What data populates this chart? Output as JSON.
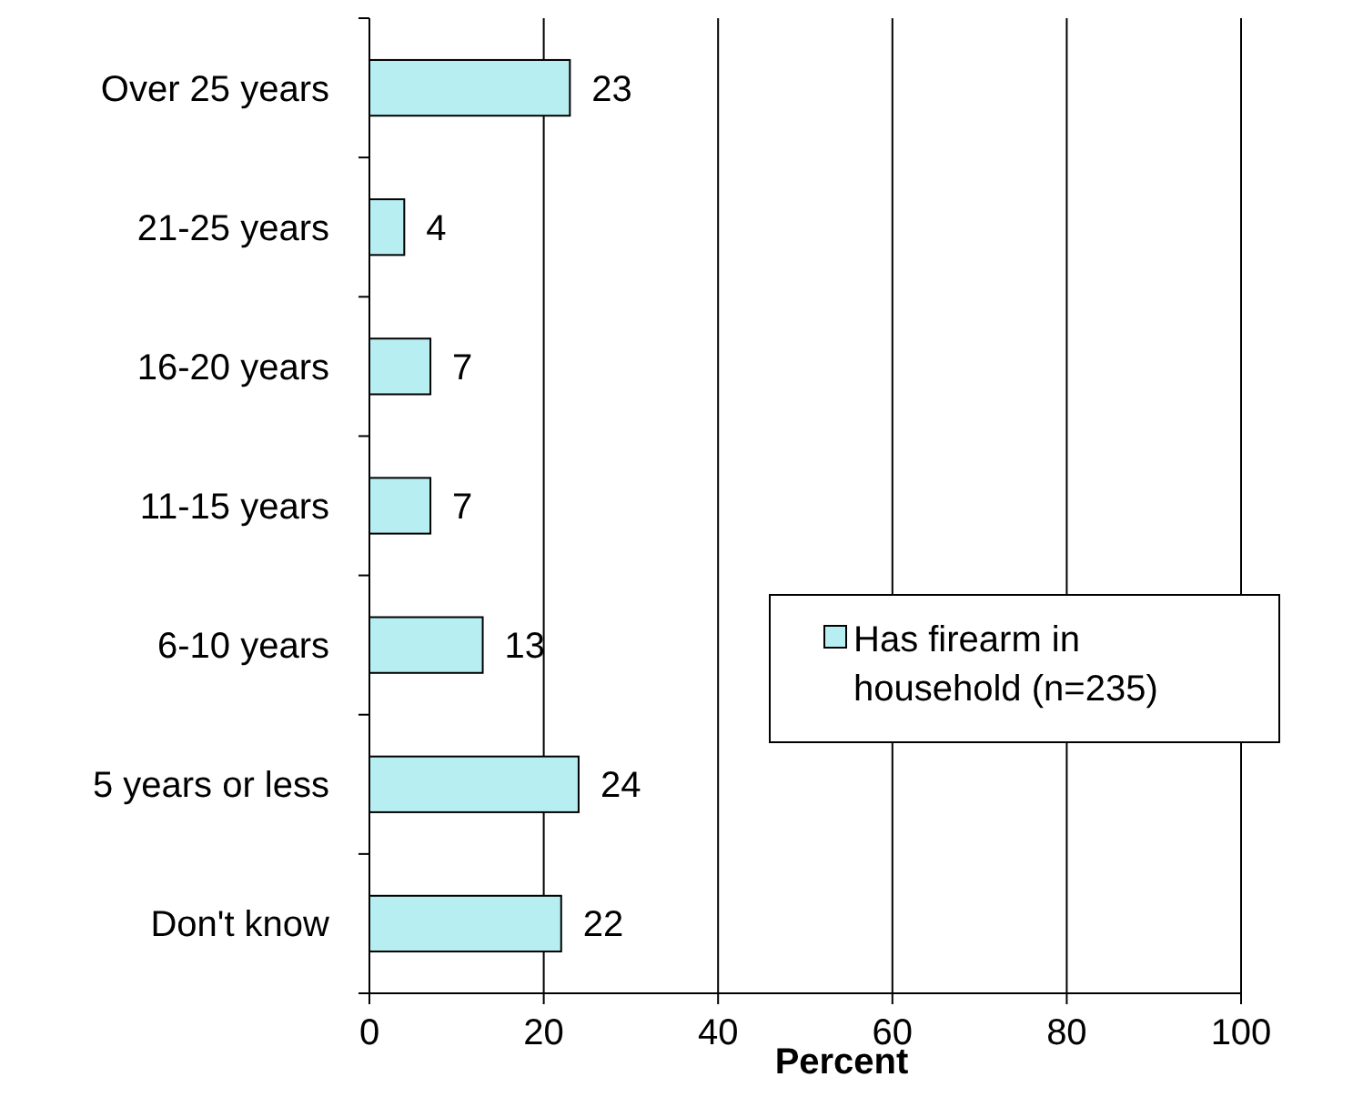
{
  "chart_data": {
    "type": "bar",
    "orientation": "horizontal",
    "xlabel": "Percent",
    "categories": [
      "Over 25 years",
      "21-25 years",
      "16-20 years",
      "11-15 years",
      "6-10 years",
      "5 years or less",
      "Don't know"
    ],
    "series": [
      {
        "name": "Has firearm in household (n=235)",
        "color": "#b7eef2",
        "values": [
          23,
          4,
          7,
          7,
          13,
          24,
          22
        ]
      }
    ],
    "xlim": [
      0,
      100
    ],
    "xticks": [
      0,
      20,
      40,
      60,
      80,
      100
    ],
    "grid": "x",
    "legend": "right",
    "data_labels": true
  }
}
